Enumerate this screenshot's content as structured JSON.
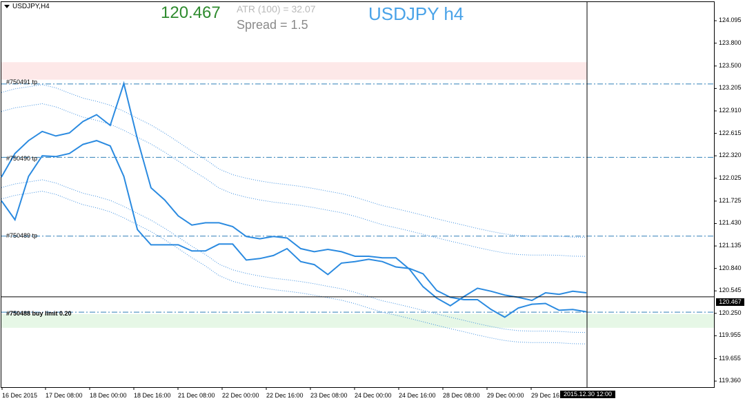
{
  "window": {
    "title": "USDJPY,H4"
  },
  "info": {
    "bid_price": "120.467",
    "atr_text": "ATR (100) =  32.07",
    "spread_text": "Spread  =  1.5",
    "symbol_title": "USDJPY h4"
  },
  "orders": [
    {
      "label": "#750491 tp",
      "price": 123.264
    },
    {
      "label": "#750490 tp",
      "price": 122.3
    },
    {
      "label": "#750489 tp",
      "price": 121.265
    },
    {
      "label": "#750488 buy limit 0.20",
      "price": 120.265
    }
  ],
  "zones": {
    "sell_zone": {
      "from": 123.32,
      "to": 123.55,
      "color": "#fde8e8"
    },
    "buy_zone": {
      "from": 120.06,
      "to": 120.24,
      "color": "#e6f7e6"
    }
  },
  "current_price": {
    "value": 120.467,
    "tag": "120.467"
  },
  "cursor": {
    "tag": "2015.12.30 12:00"
  },
  "y_axis": {
    "min": 119.28,
    "max": 124.34,
    "ticks": [
      "124.095",
      "123.800",
      "123.500",
      "123.205",
      "122.910",
      "122.615",
      "122.320",
      "122.025",
      "121.725",
      "121.430",
      "121.135",
      "120.840",
      "120.545",
      "120.250",
      "119.955",
      "119.655",
      "119.360"
    ]
  },
  "x_axis": {
    "ticks": [
      "16 Dec 2015",
      "17 Dec 08:00",
      "18 Dec 00:00",
      "18 Dec 16:00",
      "21 Dec 08:00",
      "22 Dec 00:00",
      "22 Dec 16:00",
      "23 Dec 08:00",
      "24 Dec 00:00",
      "24 Dec 16:00",
      "28 Dec 08:00",
      "29 Dec 00:00",
      "29 Dec 16:00"
    ]
  },
  "colors": {
    "line": "#2a8ae0",
    "dotted": "#3d8fe0",
    "order_line": "#2f7fb8",
    "grid_border": "#000000"
  },
  "chart_data": {
    "type": "line",
    "x_count": 44,
    "series": [
      {
        "values": [
          122.04,
          122.35,
          122.52,
          122.64,
          122.58,
          122.62,
          122.77,
          122.86,
          122.72,
          123.27,
          122.54,
          121.9,
          121.74,
          121.53,
          121.41,
          121.44,
          121.44,
          121.39,
          121.26,
          121.23,
          121.26,
          121.24,
          121.1,
          121.06,
          121.09,
          121.06,
          121.0,
          121.0,
          120.98,
          120.98,
          120.83,
          120.6,
          120.45,
          120.35,
          120.47,
          120.58,
          120.54,
          120.49,
          120.46,
          120.42,
          120.52,
          120.5,
          120.54,
          120.52
        ]
      },
      {
        "values": [
          121.73,
          121.48,
          122.05,
          122.32,
          122.31,
          122.35,
          122.47,
          122.52,
          122.45,
          122.05,
          121.35,
          121.15,
          121.15,
          121.15,
          121.07,
          121.07,
          121.16,
          121.16,
          120.95,
          120.97,
          121.01,
          121.1,
          120.93,
          120.89,
          120.76,
          120.91,
          120.93,
          120.96,
          120.93,
          120.86,
          120.84,
          120.77,
          120.55,
          120.46,
          120.43,
          120.43,
          120.3,
          120.2,
          120.32,
          120.37,
          120.38,
          120.29,
          120.3,
          120.27
        ]
      }
    ]
  }
}
